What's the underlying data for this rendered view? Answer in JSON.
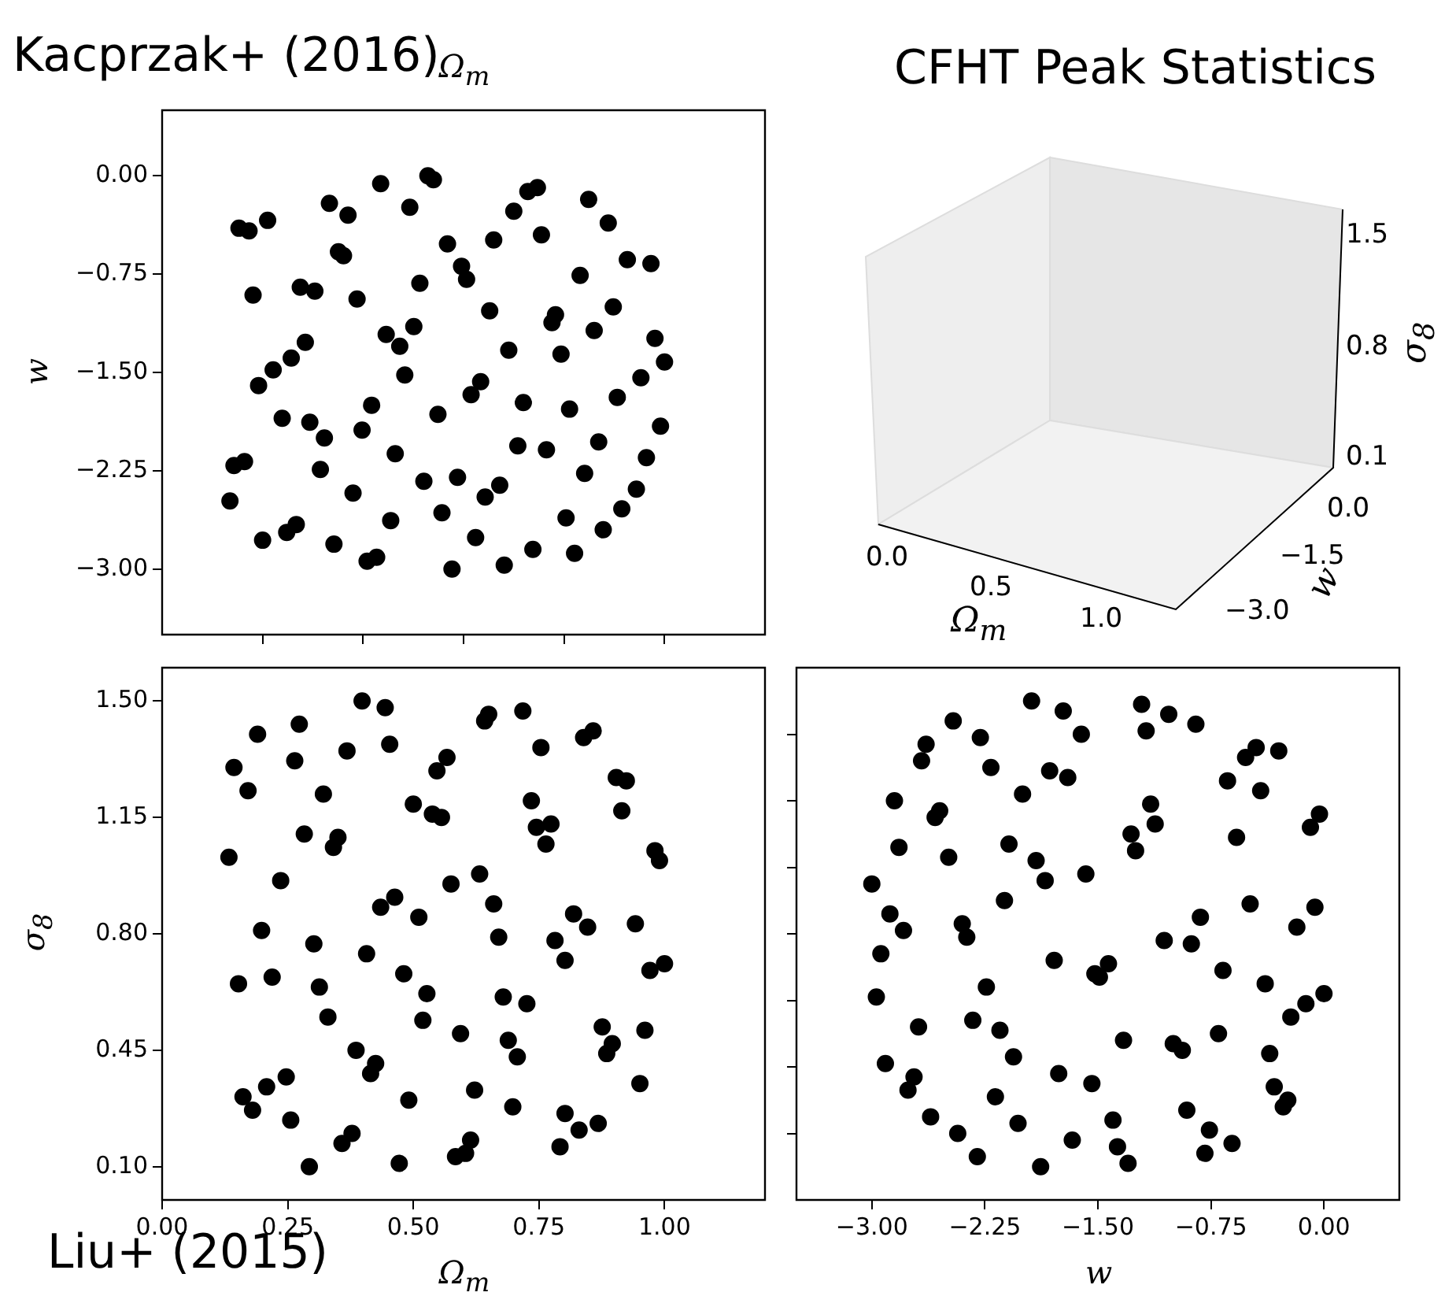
{
  "chart_data": [
    {
      "type": "scatter",
      "xlabel": "Ω$_{m}$",
      "ylabel": "w",
      "annotations": [
        "Kacprzak+ (2016)"
      ],
      "color": "#000000",
      "marker": "circle",
      "tick_labels": "y",
      "xlim": [
        0,
        1.2
      ],
      "ylim": [
        -3.5,
        0.5
      ],
      "xticks": [
        {
          "value": 0.2,
          "label": null
        },
        {
          "value": 0.4,
          "label": null
        },
        {
          "value": 0.6,
          "label": null
        },
        {
          "value": 0.8,
          "label": null
        },
        {
          "value": 1.0,
          "label": null
        }
      ],
      "yticks": [
        {
          "value": 0,
          "label": "0.00"
        },
        {
          "value": -0.75,
          "label": "−0.75"
        },
        {
          "value": -1.5,
          "label": "−1.50"
        },
        {
          "value": -2.25,
          "label": "−2.25"
        },
        {
          "value": -3,
          "label": "−3.00"
        }
      ],
      "x": [
        0.153,
        0.173,
        0.21,
        0.333,
        0.37,
        0.435,
        0.529,
        0.54,
        0.493,
        0.351,
        0.361,
        0.568,
        0.596,
        0.606,
        0.513,
        0.66,
        0.7,
        0.728,
        0.747,
        0.755,
        0.849,
        0.888,
        0.926,
        0.973,
        0.832,
        0.181,
        0.275,
        0.304,
        0.388,
        0.652,
        0.783,
        0.776,
        0.898,
        0.86,
        0.981,
        0.446,
        0.473,
        0.501,
        0.285,
        0.257,
        0.221,
        0.192,
        0.483,
        0.69,
        0.794,
        1.0,
        0.953,
        0.634,
        0.615,
        0.906,
        0.719,
        0.811,
        0.992,
        0.549,
        0.417,
        0.239,
        0.294,
        0.323,
        0.398,
        0.708,
        0.765,
        0.869,
        0.964,
        0.464,
        0.143,
        0.164,
        0.315,
        0.521,
        0.588,
        0.672,
        0.643,
        0.841,
        0.944,
        0.135,
        0.38,
        0.557,
        0.455,
        0.804,
        0.915,
        0.878,
        0.2,
        0.248,
        0.267,
        0.342,
        0.408,
        0.427,
        0.577,
        0.624,
        0.681,
        0.738,
        0.821
      ],
      "values": [
        -0.4,
        -0.42,
        -0.34,
        -0.21,
        -0.3,
        -0.06,
        0.0,
        -0.03,
        -0.24,
        -0.58,
        -0.61,
        -0.52,
        -0.69,
        -0.79,
        -0.82,
        -0.49,
        -0.27,
        -0.12,
        -0.09,
        -0.45,
        -0.18,
        -0.36,
        -0.64,
        -0.67,
        -0.76,
        -0.91,
        -0.85,
        -0.88,
        -0.94,
        -1.03,
        -1.06,
        -1.12,
        -1.0,
        -1.18,
        -1.24,
        -1.21,
        -1.3,
        -1.15,
        -1.27,
        -1.39,
        -1.48,
        -1.6,
        -1.52,
        -1.33,
        -1.36,
        -1.42,
        -1.54,
        -1.57,
        -1.67,
        -1.69,
        -1.73,
        -1.78,
        -1.91,
        -1.82,
        -1.75,
        -1.85,
        -1.88,
        -2.0,
        -1.94,
        -2.06,
        -2.09,
        -2.03,
        -2.15,
        -2.12,
        -2.21,
        -2.18,
        -2.24,
        -2.33,
        -2.3,
        -2.36,
        -2.45,
        -2.27,
        -2.39,
        -2.48,
        -2.42,
        -2.57,
        -2.63,
        -2.61,
        -2.54,
        -2.7,
        -2.78,
        -2.72,
        -2.66,
        -2.81,
        -2.94,
        -2.91,
        -3.0,
        -2.76,
        -2.97,
        -2.85,
        -2.88
      ]
    },
    {
      "type": "other",
      "title": "CFHT Peak Statistics",
      "xlabel": "Ω$_{m}$",
      "ylabel": "w",
      "y2label": "σ$_{8}$",
      "annotations": [
        "0.0",
        "0.5",
        "1.0",
        "−3.0",
        "−1.5",
        "0.0",
        "0.1",
        "0.8",
        "1.5"
      ]
    },
    {
      "type": "scatter",
      "xlabel": "Ω$_{m}$",
      "ylabel": "σ$_{8}$",
      "annotations": [
        "Liu+ (2015)"
      ],
      "color": "#000000",
      "marker": "circle",
      "xlim": [
        0,
        1.2
      ],
      "ylim": [
        0,
        1.6
      ],
      "xticks": [
        {
          "value": 0,
          "label": "0.00"
        },
        {
          "value": 0.25,
          "label": "0.25"
        },
        {
          "value": 0.5,
          "label": "0.50"
        },
        {
          "value": 0.75,
          "label": "0.75"
        },
        {
          "value": 1,
          "label": "1.00"
        }
      ],
      "yticks": [
        {
          "value": 0.1,
          "label": "0.10"
        },
        {
          "value": 0.45,
          "label": "0.45"
        },
        {
          "value": 0.8,
          "label": "0.80"
        },
        {
          "value": 1.15,
          "label": "1.15"
        },
        {
          "value": 1.5,
          "label": "1.50"
        }
      ],
      "x": [
        0.398,
        0.444,
        0.19,
        0.273,
        0.143,
        0.171,
        0.264,
        0.368,
        0.453,
        0.321,
        0.283,
        0.341,
        0.35,
        0.133,
        0.236,
        0.5,
        0.538,
        0.556,
        0.547,
        0.567,
        0.642,
        0.65,
        0.718,
        0.754,
        0.735,
        0.745,
        0.774,
        0.764,
        0.839,
        0.858,
        0.904,
        0.924,
        0.915,
        0.981,
        0.99,
        0.632,
        0.575,
        0.435,
        0.463,
        0.511,
        0.66,
        0.67,
        0.198,
        0.302,
        0.407,
        0.481,
        0.152,
        0.219,
        0.313,
        0.33,
        0.527,
        0.519,
        0.679,
        0.726,
        0.782,
        0.819,
        0.847,
        0.802,
        0.942,
        0.971,
        1.0,
        0.594,
        0.689,
        0.707,
        0.386,
        0.425,
        0.415,
        0.876,
        0.896,
        0.885,
        0.961,
        0.951,
        0.161,
        0.18,
        0.208,
        0.247,
        0.256,
        0.491,
        0.622,
        0.698,
        0.802,
        0.83,
        0.868,
        0.792,
        0.358,
        0.378,
        0.293,
        0.472,
        0.584,
        0.604,
        0.614
      ],
      "values": [
        1.5,
        1.48,
        1.4,
        1.43,
        1.3,
        1.23,
        1.32,
        1.35,
        1.37,
        1.22,
        1.1,
        1.06,
        1.09,
        1.03,
        0.96,
        1.19,
        1.16,
        1.15,
        1.29,
        1.33,
        1.44,
        1.46,
        1.47,
        1.36,
        1.2,
        1.12,
        1.13,
        1.07,
        1.39,
        1.41,
        1.27,
        1.26,
        1.17,
        1.05,
        1.02,
        0.98,
        0.95,
        0.88,
        0.91,
        0.85,
        0.89,
        0.79,
        0.81,
        0.77,
        0.74,
        0.68,
        0.65,
        0.67,
        0.64,
        0.55,
        0.62,
        0.54,
        0.61,
        0.59,
        0.78,
        0.86,
        0.82,
        0.72,
        0.83,
        0.69,
        0.71,
        0.5,
        0.48,
        0.43,
        0.45,
        0.41,
        0.38,
        0.52,
        0.47,
        0.44,
        0.51,
        0.35,
        0.31,
        0.27,
        0.34,
        0.37,
        0.24,
        0.3,
        0.33,
        0.28,
        0.26,
        0.21,
        0.23,
        0.16,
        0.17,
        0.2,
        0.1,
        0.11,
        0.13,
        0.14,
        0.18
      ]
    },
    {
      "type": "scatter",
      "xlabel": "w",
      "color": "#000000",
      "marker": "circle",
      "tick_labels": "x",
      "xlim": [
        -3.5,
        0.5
      ],
      "ylim": [
        0,
        1.6
      ],
      "xticks": [
        {
          "value": -3,
          "label": "−3.00"
        },
        {
          "value": -2.25,
          "label": "−2.25"
        },
        {
          "value": -1.5,
          "label": "−1.50"
        },
        {
          "value": -0.75,
          "label": "−0.75"
        },
        {
          "value": 0,
          "label": "0.00"
        }
      ],
      "yticks": [
        {
          "value": 0.2,
          "label": null
        },
        {
          "value": 0.4,
          "label": null
        },
        {
          "value": 0.6,
          "label": null
        },
        {
          "value": 0.8,
          "label": null
        },
        {
          "value": 1.0,
          "label": null
        },
        {
          "value": 1.2,
          "label": null
        },
        {
          "value": 1.4,
          "label": null
        }
      ],
      "x": [
        -1.94,
        -1.73,
        -2.46,
        -1.61,
        -2.28,
        -2.64,
        -2.67,
        -2.21,
        -1.82,
        -1.7,
        -2.0,
        -2.85,
        -2.55,
        -2.58,
        -1.21,
        -1.18,
        -1.03,
        -0.85,
        -0.45,
        -0.52,
        -0.3,
        -0.64,
        -0.42,
        -1.15,
        -1.12,
        -1.28,
        -1.25,
        -0.58,
        -0.03,
        -0.09,
        -2.82,
        -2.49,
        -2.09,
        -1.91,
        -1.85,
        -1.58,
        -3.0,
        -2.12,
        -2.88,
        -2.79,
        -2.4,
        -2.37,
        -2.94,
        -0.49,
        -0.82,
        -0.18,
        -0.06,
        -1.06,
        -0.88,
        -1.79,
        -1.43,
        -1.52,
        -1.49,
        -0.67,
        -0.39,
        0.0,
        -0.12,
        -0.22,
        -2.97,
        -2.24,
        -2.69,
        -2.33,
        -2.15,
        -1.33,
        -1.0,
        -0.94,
        -0.7,
        -0.36,
        -2.91,
        -2.06,
        -2.72,
        -2.76,
        -1.76,
        -1.54,
        -2.18,
        -0.33,
        -0.24,
        -0.27,
        -0.91,
        -2.61,
        -2.43,
        -2.03,
        -1.4,
        -1.67,
        -2.3,
        -1.88,
        -1.37,
        -1.3,
        -0.76,
        -0.79,
        -0.61
      ],
      "values": [
        1.5,
        1.47,
        1.44,
        1.4,
        1.39,
        1.37,
        1.32,
        1.3,
        1.29,
        1.27,
        1.22,
        1.2,
        1.17,
        1.15,
        1.49,
        1.41,
        1.46,
        1.43,
        1.36,
        1.33,
        1.35,
        1.26,
        1.23,
        1.19,
        1.13,
        1.1,
        1.05,
        1.09,
        1.16,
        1.12,
        1.06,
        1.03,
        1.07,
        1.02,
        0.96,
        0.98,
        0.95,
        0.9,
        0.86,
        0.81,
        0.83,
        0.79,
        0.74,
        0.89,
        0.85,
        0.82,
        0.88,
        0.78,
        0.77,
        0.72,
        0.71,
        0.68,
        0.67,
        0.69,
        0.65,
        0.62,
        0.59,
        0.55,
        0.61,
        0.64,
        0.52,
        0.54,
        0.51,
        0.48,
        0.47,
        0.45,
        0.5,
        0.44,
        0.41,
        0.43,
        0.37,
        0.33,
        0.38,
        0.35,
        0.31,
        0.34,
        0.3,
        0.28,
        0.27,
        0.25,
        0.2,
        0.23,
        0.24,
        0.18,
        0.13,
        0.1,
        0.16,
        0.11,
        0.21,
        0.14,
        0.17
      ]
    }
  ]
}
